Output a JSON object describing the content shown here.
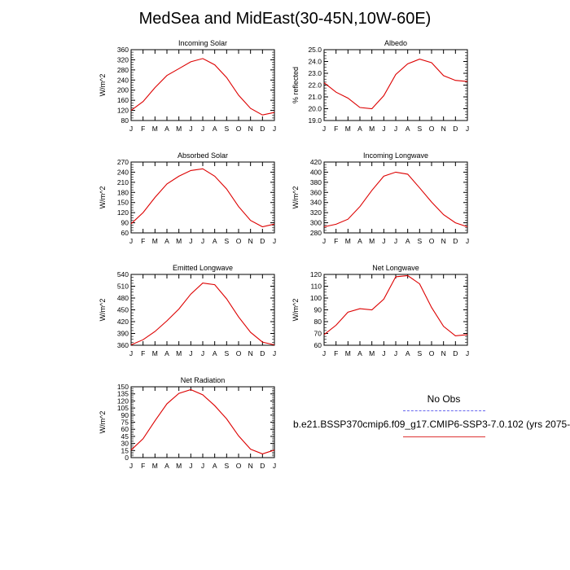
{
  "title": "MedSea and MidEast(30-45N,10W-60E)",
  "legend": {
    "obs_label": "No Obs",
    "case_label": "b.e21.BSSP370cmip6.f09_g17.CMIP6-SSP3-7.0.102 (yrs 2075-",
    "obs_color": "#6666ee",
    "case_color": "#dd0000"
  },
  "chart_data": [
    {
      "type": "line",
      "title": "Incoming Solar",
      "ylabel": "W/m^2",
      "ylim": [
        80,
        360
      ],
      "yticks": [
        "80",
        "120",
        "160",
        "200",
        "240",
        "280",
        "320",
        "360"
      ],
      "categories": [
        "J",
        "F",
        "M",
        "A",
        "M",
        "J",
        "J",
        "A",
        "S",
        "O",
        "N",
        "D",
        "J"
      ],
      "series": [
        {
          "color": "#dd0000",
          "values": [
            120,
            155,
            210,
            258,
            285,
            312,
            325,
            300,
            250,
            180,
            128,
            102,
            112
          ]
        }
      ]
    },
    {
      "type": "line",
      "title": "Albedo",
      "ylabel": "% reflected",
      "ylim": [
        19.0,
        25.0
      ],
      "yticks": [
        "19.0",
        "20.0",
        "21.0",
        "22.0",
        "23.0",
        "24.0",
        "25.0"
      ],
      "categories": [
        "J",
        "F",
        "M",
        "A",
        "M",
        "J",
        "J",
        "A",
        "S",
        "O",
        "N",
        "D",
        "J"
      ],
      "series": [
        {
          "color": "#dd0000",
          "values": [
            22.2,
            21.4,
            20.9,
            20.1,
            20.0,
            21.1,
            22.9,
            23.8,
            24.2,
            23.9,
            22.8,
            22.4,
            22.3
          ]
        }
      ]
    },
    {
      "type": "line",
      "title": "Absorbed Solar",
      "ylabel": "W/m^2",
      "ylim": [
        60,
        270
      ],
      "yticks": [
        "60",
        "90",
        "120",
        "150",
        "180",
        "210",
        "240",
        "270"
      ],
      "categories": [
        "J",
        "F",
        "M",
        "A",
        "M",
        "J",
        "J",
        "A",
        "S",
        "O",
        "N",
        "D",
        "J"
      ],
      "series": [
        {
          "color": "#dd0000",
          "values": [
            87,
            120,
            165,
            205,
            228,
            245,
            250,
            228,
            190,
            138,
            97,
            78,
            86
          ]
        }
      ]
    },
    {
      "type": "line",
      "title": "Incoming Longwave",
      "ylabel": "W/m^2",
      "ylim": [
        280,
        420
      ],
      "yticks": [
        "280",
        "300",
        "320",
        "340",
        "360",
        "380",
        "400",
        "420"
      ],
      "categories": [
        "J",
        "F",
        "M",
        "A",
        "M",
        "J",
        "J",
        "A",
        "S",
        "O",
        "N",
        "D",
        "J"
      ],
      "series": [
        {
          "color": "#dd0000",
          "values": [
            292,
            297,
            307,
            332,
            364,
            392,
            400,
            396,
            369,
            341,
            316,
            300,
            292
          ]
        }
      ]
    },
    {
      "type": "line",
      "title": "Emitted Longwave",
      "ylabel": "W/m^2",
      "ylim": [
        360,
        540
      ],
      "yticks": [
        "360",
        "390",
        "420",
        "450",
        "480",
        "510",
        "540"
      ],
      "categories": [
        "J",
        "F",
        "M",
        "A",
        "M",
        "J",
        "J",
        "A",
        "S",
        "O",
        "N",
        "D",
        "J"
      ],
      "series": [
        {
          "color": "#dd0000",
          "values": [
            361,
            374,
            395,
            422,
            452,
            490,
            518,
            514,
            478,
            432,
            393,
            368,
            361
          ]
        }
      ]
    },
    {
      "type": "line",
      "title": "Net Longwave",
      "ylabel": "W/m^2",
      "ylim": [
        60,
        120
      ],
      "yticks": [
        "60",
        "70",
        "80",
        "90",
        "100",
        "110",
        "120"
      ],
      "categories": [
        "J",
        "F",
        "M",
        "A",
        "M",
        "J",
        "J",
        "A",
        "S",
        "O",
        "N",
        "D",
        "J"
      ],
      "series": [
        {
          "color": "#dd0000",
          "values": [
            69,
            77,
            88,
            91,
            90,
            99,
            118,
            119,
            112,
            92,
            76,
            68,
            69
          ]
        }
      ]
    },
    {
      "type": "line",
      "title": "Net Radiation",
      "ylabel": "W/m^2",
      "ylim": [
        0,
        150
      ],
      "yticks": [
        "0",
        "15",
        "30",
        "45",
        "60",
        "75",
        "90",
        "105",
        "120",
        "135",
        "150"
      ],
      "categories": [
        "J",
        "F",
        "M",
        "A",
        "M",
        "J",
        "J",
        "A",
        "S",
        "O",
        "N",
        "D",
        "J"
      ],
      "series": [
        {
          "color": "#dd0000",
          "values": [
            16,
            40,
            78,
            114,
            136,
            144,
            133,
            110,
            82,
            46,
            18,
            8,
            16
          ]
        }
      ]
    }
  ]
}
